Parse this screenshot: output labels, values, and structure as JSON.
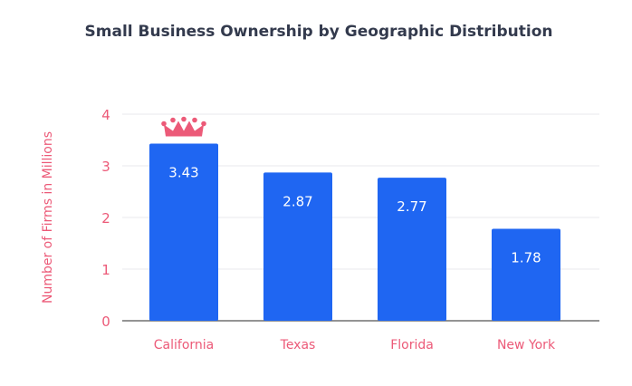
{
  "chart_data": {
    "type": "bar",
    "title": "Small Business Ownership by Geographic Distribution",
    "xlabel": "",
    "ylabel": "Number of Firms in Millions",
    "categories": [
      "California",
      "Texas",
      "Florida",
      "New York"
    ],
    "values": [
      3.43,
      2.87,
      2.77,
      1.78
    ],
    "data_labels": [
      "3.43",
      "2.87",
      "2.77",
      "1.78"
    ],
    "ylim": [
      0,
      4
    ],
    "yticks": [
      0,
      1,
      2,
      3,
      4
    ],
    "grid": true,
    "legend": "none",
    "annotation": "crown-icon above highest bar (California)",
    "colors": {
      "bar": "#1f66f2",
      "accent": "#ec5a78",
      "title": "#333a4d",
      "grid": "#e8e8ec",
      "axis": "#555555"
    }
  }
}
